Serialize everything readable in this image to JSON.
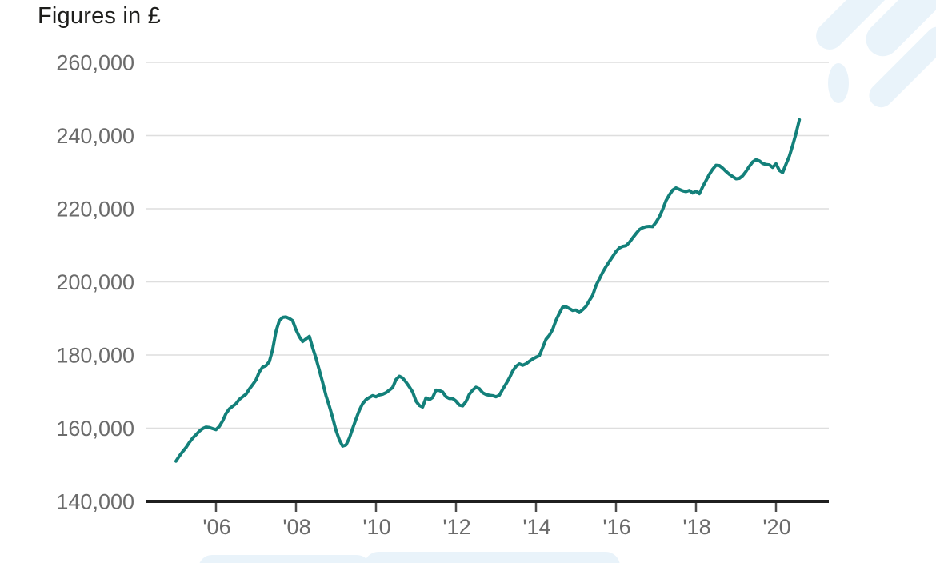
{
  "colors": {
    "line": "#13807a",
    "grid": "#dedede",
    "axis": "#1f1f1f",
    "tick_mark": "#4d4d4d",
    "tick_label": "#6b6b6b",
    "title_text": "#1d1d1b",
    "watermark": "#e9f3fa",
    "background": "#ffffff"
  },
  "chart_data": {
    "type": "line",
    "title": "Figures in £",
    "unit": "GBP",
    "frequency": "monthly",
    "x_start": "2005-01",
    "x_end": "2020-08",
    "x_tick_years": [
      2006,
      2008,
      2010,
      2012,
      2014,
      2016,
      2018,
      2020
    ],
    "x_tick_labels": [
      "'06",
      "'08",
      "'10",
      "'12",
      "'14",
      "'16",
      "'18",
      "'20"
    ],
    "y_ticks": [
      260000,
      240000,
      220000,
      200000,
      180000,
      160000,
      140000
    ],
    "y_tick_labels": [
      "260,000",
      "240,000",
      "220,000",
      "200,000",
      "180,000",
      "160,000",
      "140,000"
    ],
    "ylim": [
      140000,
      260000
    ],
    "grid": "horizontal",
    "legend": "none",
    "series": [
      {
        "name": "Average house price",
        "values": [
          151000,
          152400,
          153600,
          154700,
          156100,
          157300,
          158200,
          159200,
          159900,
          160300,
          160200,
          159900,
          159600,
          160500,
          162000,
          164000,
          165300,
          166000,
          166700,
          167900,
          168600,
          169300,
          170700,
          171900,
          173200,
          175400,
          176700,
          177100,
          178200,
          181500,
          186500,
          189400,
          190300,
          190400,
          190000,
          189400,
          186900,
          185000,
          183700,
          184400,
          185100,
          182000,
          179100,
          175800,
          172500,
          168900,
          166000,
          162900,
          159400,
          156800,
          155100,
          155400,
          157300,
          159900,
          162500,
          164900,
          166700,
          167800,
          168400,
          168900,
          168600,
          169100,
          169300,
          169700,
          170400,
          171100,
          173300,
          174200,
          173700,
          172600,
          171300,
          169900,
          167400,
          166200,
          165800,
          168300,
          167800,
          168400,
          170400,
          170300,
          169900,
          168600,
          168100,
          168100,
          167400,
          166300,
          166100,
          167300,
          169300,
          170400,
          171200,
          170800,
          169700,
          169200,
          169000,
          168900,
          168600,
          169000,
          170600,
          172100,
          173700,
          175600,
          176900,
          177600,
          177200,
          177600,
          178300,
          178900,
          179400,
          179800,
          182000,
          184300,
          185400,
          187000,
          189500,
          191400,
          193100,
          193200,
          192700,
          192200,
          192300,
          191600,
          192400,
          193300,
          194900,
          196300,
          199000,
          200800,
          202600,
          204200,
          205600,
          206900,
          208300,
          209300,
          209700,
          209900,
          210800,
          212000,
          213200,
          214300,
          214800,
          215100,
          215200,
          215100,
          216300,
          217800,
          219800,
          222200,
          223800,
          225100,
          225700,
          225300,
          224900,
          224700,
          225000,
          224300,
          224800,
          224100,
          226000,
          227700,
          229400,
          230800,
          231900,
          231800,
          231100,
          230200,
          229400,
          228800,
          228200,
          228300,
          229000,
          230200,
          231600,
          232800,
          233400,
          233100,
          232400,
          232100,
          232000,
          231300,
          232300,
          230500,
          229900,
          232200,
          234400,
          237300,
          240600,
          244300
        ]
      }
    ]
  }
}
